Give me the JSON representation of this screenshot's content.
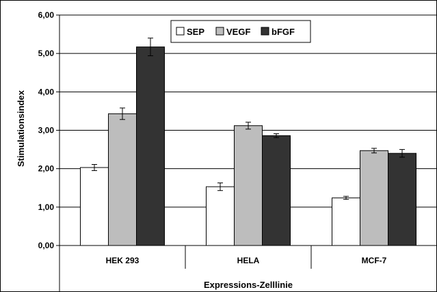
{
  "chart_data": {
    "type": "bar",
    "title": "",
    "xlabel": "Expressions-Zelllinie",
    "ylabel": "Stimulationsindex",
    "categories": [
      "HEK 293",
      "HELA",
      "MCF-7"
    ],
    "ylim": [
      0,
      6
    ],
    "ytick_labels": [
      "0,00",
      "1,00",
      "2,00",
      "3,00",
      "4,00",
      "5,00",
      "6,00"
    ],
    "grid": true,
    "legend_position": "top-center",
    "series": [
      {
        "name": "SEP",
        "color": "#ffffff",
        "values": [
          2.03,
          1.53,
          1.24
        ],
        "errors": [
          0.08,
          0.1,
          0.04
        ]
      },
      {
        "name": "VEGF",
        "color": "#bdbdbd",
        "values": [
          3.43,
          3.12,
          2.47
        ],
        "errors": [
          0.15,
          0.09,
          0.06
        ]
      },
      {
        "name": "bFGF",
        "color": "#333333",
        "values": [
          5.17,
          2.86,
          2.4
        ],
        "errors": [
          0.23,
          0.05,
          0.1
        ]
      }
    ]
  }
}
